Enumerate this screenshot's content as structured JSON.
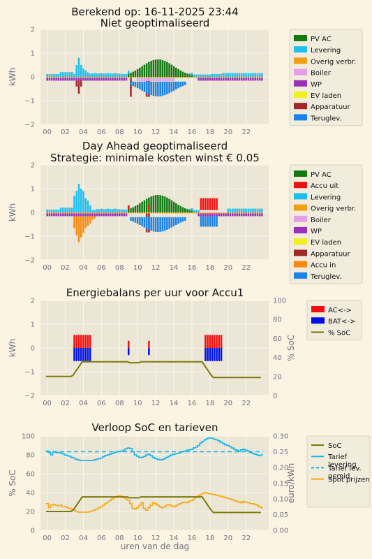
{
  "page": {
    "title_line1": "Berekend op: 16-11-2025 23:44"
  },
  "x_axis": {
    "ticks": [
      "00",
      "02",
      "04",
      "06",
      "08",
      "10",
      "12",
      "14",
      "16",
      "18",
      "20",
      "22"
    ],
    "xlabel": "uren van de dag"
  },
  "colors": {
    "pv": "#137a13",
    "accu_uit": "#f01010",
    "levering": "#1ebfee",
    "overig": "#f0a010",
    "boiler": "#e59ee8",
    "wp": "#9a2fb8",
    "ev": "#f0f020",
    "apparatuur": "#a02828",
    "accu_in": "#f88a10",
    "terug": "#1a82e8",
    "ac": "#f01010",
    "bat": "#0010e8",
    "soc": "#7a7a08",
    "tarief": "#10b4f0",
    "spot": "#f8a810"
  },
  "chart_data": [
    {
      "type": "bar",
      "title": "Niet geoptimaliseerd",
      "ylabel": "kWh",
      "ylim": [
        -2,
        2
      ],
      "yticks": [
        "2",
        "1",
        "0",
        "−1",
        "−2"
      ],
      "legend": [
        "PV AC",
        "Levering",
        "Overig verbr.",
        "Boiler",
        "WP",
        "EV laden",
        "Apparatuur",
        "Teruglev."
      ]
    },
    {
      "type": "bar",
      "title": "Day Ahead geoptimaliseerd",
      "subtitle": "Strategie: minimale kosten winst € 0.05",
      "ylabel": "kWh",
      "ylim": [
        -2,
        2
      ],
      "yticks": [
        "2",
        "1",
        "0",
        "−1",
        "−2"
      ],
      "legend": [
        "PV AC",
        "Accu uit",
        "Levering",
        "Overig verbr.",
        "Boiler",
        "WP",
        "EV laden",
        "Apparatuur",
        "Accu in",
        "Teruglev."
      ]
    },
    {
      "type": "bar",
      "title": "Energiebalans per uur voor Accu1",
      "ylabel": "kWh",
      "ylabel2": "% SoC",
      "ylim": [
        -2,
        2
      ],
      "ylim2": [
        0,
        100
      ],
      "yticks": [
        "2",
        "1",
        "0",
        "−1",
        "−2"
      ],
      "yticks2": [
        "100",
        "80",
        "60",
        "40",
        "20",
        "0"
      ],
      "legend": [
        "AC<->",
        "BAT<->",
        "% SoC"
      ],
      "soc": [
        20,
        20,
        20,
        20,
        20,
        20,
        20,
        20,
        20,
        20,
        20,
        20,
        21.5,
        25,
        28.5,
        32,
        35.5,
        35.5,
        35.5,
        35.5,
        35.5,
        35.5,
        35.5,
        35.5,
        35.5,
        35.5,
        35.5,
        35.5,
        35.5,
        35.5,
        35.5,
        35.5,
        35.5,
        35.5,
        35.5,
        35.5,
        35.5,
        34.5,
        34.5,
        34.5,
        34.5,
        34.5,
        35.5,
        35.5,
        35.5,
        35.5,
        35.5,
        35.5,
        35.5,
        35.5,
        35.5,
        35.5,
        35.5,
        35.5,
        35.5,
        35.5,
        35.5,
        35.5,
        35.5,
        35.5,
        35.5,
        35.5,
        35.5,
        35.5,
        35.5,
        35.5,
        35.5,
        35.5,
        35.5,
        35.5,
        32,
        28.5,
        25,
        21.5,
        19,
        19,
        19,
        19,
        19,
        19,
        19,
        19,
        19,
        19,
        19,
        19,
        19,
        19,
        19,
        19,
        19,
        19,
        19,
        19,
        19,
        19
      ]
    },
    {
      "type": "line",
      "title": "Verloop SoC en tarieven",
      "ylabel": "% SoC",
      "ylabel2": "euro/kWh",
      "ylim": [
        0,
        100
      ],
      "ylim2": [
        0,
        0.3
      ],
      "yticks": [
        "100",
        "80",
        "60",
        "40",
        "20",
        "0"
      ],
      "yticks2": [
        "0.30",
        "0.25",
        "0.20",
        "0.15",
        "0.10",
        "0.05",
        "0.00"
      ],
      "legend": [
        "SoC",
        "Tarief levering",
        "Tarief lev. gemid.",
        "Spot prijzen"
      ],
      "tarief_gemid": 0.25,
      "tarief": [
        0.252,
        0.248,
        0.24,
        0.25,
        0.248,
        0.247,
        0.246,
        0.243,
        0.24,
        0.238,
        0.236,
        0.232,
        0.23,
        0.226,
        0.224,
        0.222,
        0.222,
        0.222,
        0.222,
        0.222,
        0.222,
        0.224,
        0.226,
        0.228,
        0.23,
        0.235,
        0.238,
        0.24,
        0.242,
        0.245,
        0.248,
        0.25,
        0.25,
        0.252,
        0.255,
        0.26,
        0.262,
        0.26,
        0.25,
        0.24,
        0.236,
        0.232,
        0.232,
        0.235,
        0.24,
        0.242,
        0.238,
        0.232,
        0.228,
        0.226,
        0.224,
        0.225,
        0.228,
        0.232,
        0.236,
        0.24,
        0.242,
        0.243,
        0.245,
        0.248,
        0.25,
        0.252,
        0.255,
        0.256,
        0.258,
        0.262,
        0.265,
        0.27,
        0.278,
        0.283,
        0.288,
        0.292,
        0.294,
        0.293,
        0.29,
        0.288,
        0.285,
        0.28,
        0.276,
        0.272,
        0.27,
        0.266,
        0.262,
        0.258,
        0.255,
        0.252,
        0.256,
        0.258,
        0.255,
        0.252,
        0.248,
        0.245,
        0.242,
        0.24,
        0.238,
        0.24
      ],
      "spot": [
        0.085,
        0.072,
        0.08,
        0.082,
        0.08,
        0.078,
        0.08,
        0.075,
        0.075,
        0.072,
        0.07,
        0.068,
        0.065,
        0.06,
        0.058,
        0.058,
        0.058,
        0.058,
        0.058,
        0.06,
        0.062,
        0.065,
        0.068,
        0.072,
        0.075,
        0.08,
        0.085,
        0.09,
        0.095,
        0.1,
        0.105,
        0.108,
        0.11,
        0.108,
        0.104,
        0.1,
        0.096,
        0.085,
        0.07,
        0.068,
        0.072,
        0.08,
        0.088,
        0.07,
        0.064,
        0.072,
        0.08,
        0.088,
        0.085,
        0.08,
        0.075,
        0.072,
        0.075,
        0.08,
        0.082,
        0.078,
        0.075,
        0.078,
        0.082,
        0.085,
        0.088,
        0.09,
        0.088,
        0.092,
        0.095,
        0.1,
        0.105,
        0.11,
        0.113,
        0.118,
        0.12,
        0.118,
        0.116,
        0.115,
        0.114,
        0.112,
        0.11,
        0.108,
        0.106,
        0.104,
        0.102,
        0.1,
        0.098,
        0.095,
        0.092,
        0.09,
        0.088,
        0.092,
        0.09,
        0.088,
        0.085,
        0.085,
        0.082,
        0.08,
        0.075,
        0.072
      ]
    }
  ]
}
